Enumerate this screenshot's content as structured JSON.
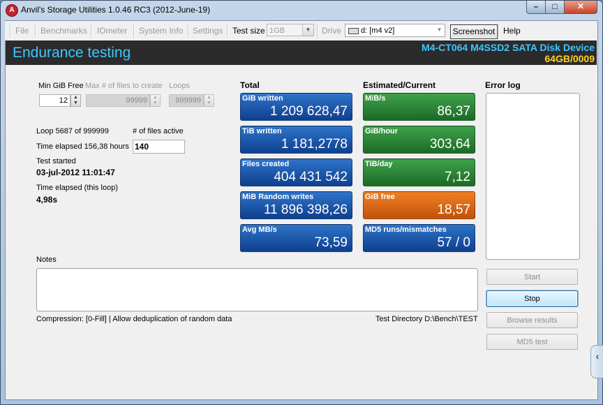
{
  "window": {
    "title": "Anvil's Storage Utilities 1.0.46 RC3 (2012-June-19)",
    "app_icon_glyph": "A",
    "minimize_glyph": "–",
    "maximize_glyph": "□",
    "close_glyph": "✕"
  },
  "menu": {
    "file": "File",
    "benchmarks": "Benchmarks",
    "iometer": "IOmeter",
    "system_info": "System Info",
    "settings": "Settings",
    "test_size_label": "Test size",
    "test_size_value": "1GB",
    "drive_label": "Drive",
    "drive_value": "d: [m4 v2]",
    "screenshot": "Screenshot",
    "help": "Help"
  },
  "header": {
    "title": "Endurance testing",
    "device_name": "M4-CT064 M4SSD2 SATA Disk Device",
    "device_capacity": "64GB/0009"
  },
  "settings": {
    "min_gib_free_label": "Min GiB Free",
    "min_gib_free_value": "12",
    "max_files_label": "Max # of files to create",
    "max_files_value": "99999",
    "loops_label": "Loops",
    "loops_value": "999999"
  },
  "status": {
    "loop_text": "Loop 5687 of 999999",
    "files_active_label": "# of files active",
    "files_active_value": "140",
    "time_elapsed_total": "Time elapsed 156,38 hours",
    "test_started_label": "Test started",
    "test_started_value": "03-jul-2012 11:01:47",
    "time_elapsed_loop_label": "Time elapsed (this loop)",
    "time_elapsed_loop_value": "4,98s"
  },
  "total": {
    "heading": "Total",
    "tiles": [
      {
        "label": "GiB written",
        "value": "1 209 628,47"
      },
      {
        "label": "TiB written",
        "value": "1 181,2778"
      },
      {
        "label": "Files created",
        "value": "404 431 542"
      },
      {
        "label": "MiB Random writes",
        "value": "11 896 398,26"
      },
      {
        "label": "Avg MB/s",
        "value": "73,59"
      }
    ]
  },
  "estimated": {
    "heading": "Estimated/Current",
    "tiles": [
      {
        "label": "MiB/s",
        "value": "86,37",
        "color": "green"
      },
      {
        "label": "GiB/hour",
        "value": "303,64",
        "color": "green"
      },
      {
        "label": "TiB/day",
        "value": "7,12",
        "color": "green"
      },
      {
        "label": "GiB free",
        "value": "18,57",
        "color": "orange"
      },
      {
        "label": "MD5 runs/mismatches",
        "value": "57 / 0",
        "color": "blue"
      }
    ]
  },
  "error_log": {
    "heading": "Error log"
  },
  "notes": {
    "label": "Notes"
  },
  "buttons": {
    "start": "Start",
    "stop": "Stop",
    "browse_results": "Browse results",
    "md5_test": "MD5 test"
  },
  "footer": {
    "compression": "Compression: [0-Fill]  |  Allow deduplication of random data",
    "test_directory": "Test Directory D:\\Bench\\TEST"
  },
  "colors": {
    "header_bg": "#2b2b2b",
    "header_title": "#3dc7ff",
    "device_capacity": "#ffd11f",
    "tile_blue": "#1f5bb0",
    "tile_green": "#2e8a3a",
    "tile_orange": "#e06a17"
  },
  "side_tab": {
    "glyph": "‹"
  }
}
